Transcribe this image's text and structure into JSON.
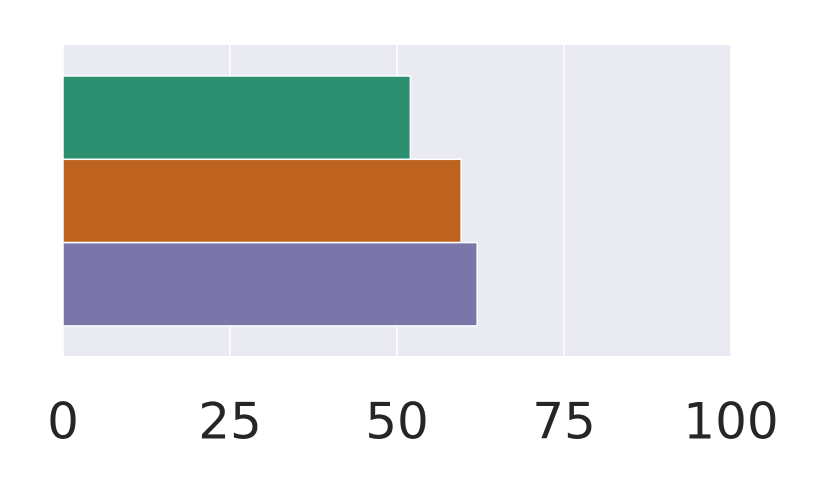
{
  "chart_data": {
    "type": "barh",
    "categories": [
      null,
      null,
      null
    ],
    "values": [
      52,
      59.6,
      62
    ],
    "colors": [
      "#2b8f70",
      "#bd621f",
      "#7b76aa"
    ],
    "xlim": [
      0,
      100
    ],
    "xticks": [
      0,
      25,
      50,
      75,
      100
    ],
    "grid": true
  }
}
